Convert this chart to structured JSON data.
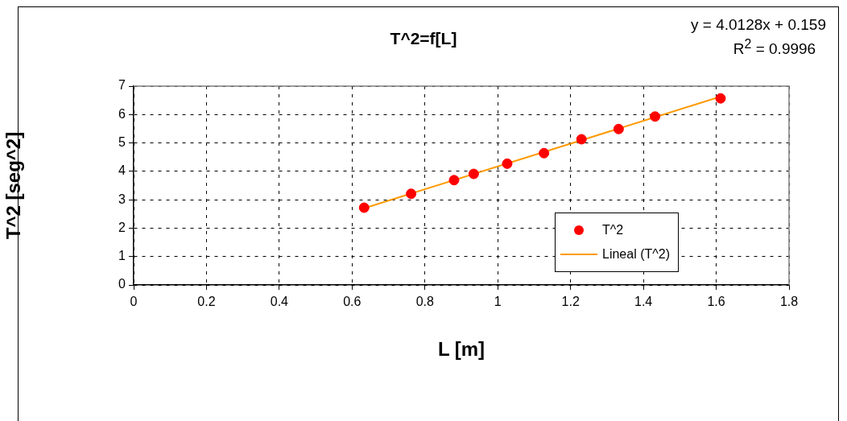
{
  "chart_data": {
    "type": "scatter",
    "title": "T^2=f[L]",
    "xlabel": "L [m]",
    "ylabel": "T^2 [seg^2]",
    "series": [
      {
        "name": "T^2",
        "type": "scatter",
        "color": "#ff0000",
        "marker": "circle",
        "x": [
          0.633,
          0.762,
          0.88,
          0.934,
          1.026,
          1.127,
          1.23,
          1.332,
          1.432,
          1.612
        ],
        "values": [
          2.72,
          3.21,
          3.69,
          3.91,
          4.27,
          4.64,
          5.13,
          5.49,
          5.93,
          6.57
        ]
      },
      {
        "name": "Lineal (T^2)",
        "type": "line",
        "color": "#ff9900",
        "marker": "none",
        "line_style": "solid",
        "x": [
          0.633,
          1.612
        ],
        "values": [
          2.7,
          6.63
        ]
      }
    ],
    "xlim": [
      0,
      1.8
    ],
    "xticks": [
      0,
      0.2,
      0.4,
      0.6,
      0.8,
      1,
      1.2,
      1.4,
      1.6,
      1.8
    ],
    "ylim": [
      0,
      7
    ],
    "yticks": [
      0,
      1,
      2,
      3,
      4,
      5,
      6,
      7
    ],
    "grid": true,
    "legend": "bottom right",
    "annotations": [
      "y = 4.0128x + 0.159",
      "R$^{2}$ = 0.9996"
    ]
  }
}
